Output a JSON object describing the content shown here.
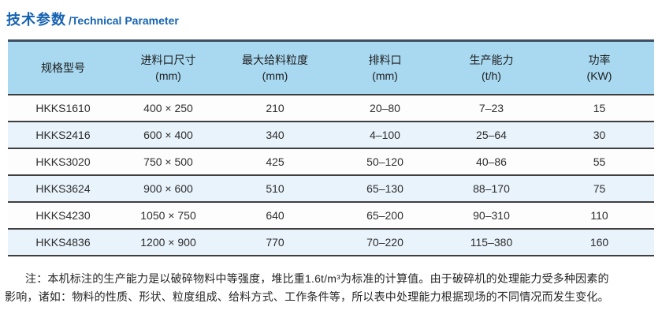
{
  "title": {
    "zh": "技术参数",
    "en": "/Technical Parameter"
  },
  "table": {
    "headers": [
      {
        "label": "规格型号",
        "unit": ""
      },
      {
        "label": "进料口尺寸",
        "unit": "(mm)"
      },
      {
        "label": "最大给料粒度",
        "unit": "(mm)"
      },
      {
        "label": "排料口",
        "unit": "(mm)"
      },
      {
        "label": "生产能力",
        "unit": "(t/h)"
      },
      {
        "label": "功率",
        "unit": "(KW)"
      }
    ],
    "column_names": [
      "model",
      "feed-opening-size",
      "max-feed-size",
      "discharge-opening",
      "capacity",
      "power"
    ],
    "rows": [
      [
        "HKKS1610",
        "400 × 250",
        "210",
        "20–80",
        "7–23",
        "15"
      ],
      [
        "HKKS2416",
        "600 × 400",
        "340",
        "4–100",
        "25–64",
        "30"
      ],
      [
        "HKKS3020",
        "750 × 500",
        "425",
        "50–120",
        "40–86",
        "55"
      ],
      [
        "HKKS3624",
        "900 × 600",
        "510",
        "65–130",
        "88–170",
        "75"
      ],
      [
        "HKKS4230",
        "1050 × 750",
        "640",
        "65–200",
        "90–310",
        "110"
      ],
      [
        "HKKS4836",
        "1200 × 900",
        "770",
        "70–220",
        "115–380",
        "160"
      ]
    ]
  },
  "note": {
    "line1": "注：本机标注的生产能力是以破碎物料中等强度，堆比重1.6t/m³为标准的计算值。由于破碎机的处理能力受多种因素的",
    "line2": "影响，诸如：物料的性质、形状、粒度组成、给料方式、工作条件等，所以表中处理能力根据现场的不同情况而发生变化。"
  },
  "colors": {
    "accent": "#1663b2",
    "header-bg": "#a9d9f1",
    "alt-row-bg": "#e9f3fb",
    "top-rule": "#3d4f63",
    "row-line": "#3f3f3f",
    "text": "#262626"
  }
}
